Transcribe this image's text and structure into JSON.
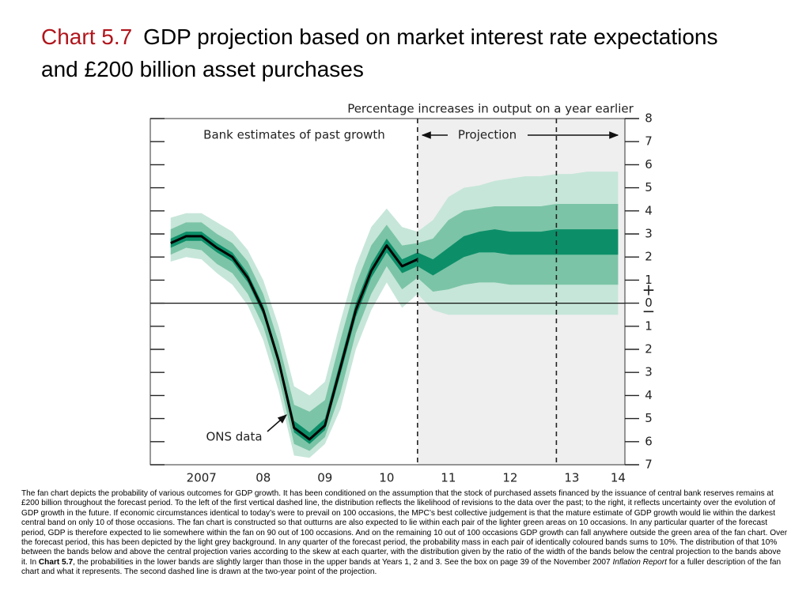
{
  "chart_data": {
    "type": "fan",
    "chart_label": "Chart 5.7",
    "title": "GDP projection based on market interest rate expectations and £200 billion asset purchases",
    "y_axis_label": "Percentage increases in output on a year earlier",
    "annotations": {
      "past": "Bank estimates of past growth",
      "projection": "Projection",
      "line": "ONS data",
      "plus": "+",
      "minus": "−"
    },
    "x": [
      2007.0,
      2007.25,
      2007.5,
      2007.75,
      2008.0,
      2008.25,
      2008.5,
      2008.75,
      2009.0,
      2009.25,
      2009.5,
      2009.75,
      2010.0,
      2010.25,
      2010.5,
      2010.75,
      2011.0,
      2011.25,
      2011.5,
      2011.75,
      2012.0,
      2012.25,
      2012.5,
      2012.75,
      2013.0,
      2013.25,
      2013.5,
      2013.75,
      2014.0,
      2014.25
    ],
    "bands": [
      {
        "color": "#c6e6d9",
        "upper": [
          3.7,
          3.9,
          3.9,
          3.5,
          3.1,
          2.3,
          1.0,
          -1.0,
          -3.6,
          -4.0,
          -3.4,
          -0.8,
          1.6,
          3.3,
          4.1,
          3.3,
          3.1,
          3.6,
          4.6,
          5.0,
          5.1,
          5.3,
          5.4,
          5.5,
          5.5,
          5.6,
          5.6,
          5.7,
          5.7,
          5.7
        ],
        "lower": [
          1.8,
          2.0,
          1.9,
          1.3,
          0.8,
          -0.1,
          -1.6,
          -3.8,
          -6.6,
          -6.7,
          -6.1,
          -4.6,
          -2.0,
          -0.3,
          0.9,
          -0.2,
          0.4,
          -0.3,
          -0.5,
          -0.5,
          -0.5,
          -0.5,
          -0.5,
          -0.5,
          -0.5,
          -0.5,
          -0.5,
          -0.5,
          -0.5,
          -0.5
        ]
      },
      {
        "color": "#7cc4a7",
        "upper": [
          3.2,
          3.5,
          3.5,
          3.0,
          2.6,
          1.8,
          0.4,
          -1.7,
          -4.4,
          -4.7,
          -4.2,
          -1.6,
          0.8,
          2.5,
          3.4,
          2.5,
          2.6,
          2.8,
          3.6,
          4.0,
          4.1,
          4.2,
          4.2,
          4.2,
          4.2,
          4.3,
          4.3,
          4.3,
          4.3,
          4.3
        ],
        "lower": [
          2.1,
          2.4,
          2.3,
          1.7,
          1.3,
          0.4,
          -1.0,
          -3.2,
          -6.1,
          -6.4,
          -5.8,
          -3.9,
          -1.3,
          0.4,
          1.6,
          0.6,
          1.1,
          0.5,
          0.6,
          0.8,
          0.9,
          0.9,
          0.8,
          0.8,
          0.8,
          0.8,
          0.8,
          0.8,
          0.8,
          0.8
        ]
      },
      {
        "color": "#0c8f69",
        "upper": [
          2.8,
          3.1,
          3.1,
          2.6,
          2.2,
          1.3,
          -0.1,
          -2.3,
          -5.1,
          -5.6,
          -5.0,
          -2.5,
          0.0,
          1.7,
          2.8,
          1.9,
          2.2,
          1.9,
          2.4,
          2.9,
          3.1,
          3.2,
          3.1,
          3.1,
          3.1,
          3.2,
          3.2,
          3.2,
          3.2,
          3.2
        ],
        "lower": [
          2.4,
          2.7,
          2.7,
          2.2,
          1.8,
          0.9,
          -0.5,
          -2.7,
          -5.6,
          -6.1,
          -5.5,
          -3.1,
          -0.6,
          1.1,
          2.2,
          1.3,
          1.6,
          1.2,
          1.6,
          2.0,
          2.2,
          2.2,
          2.1,
          2.1,
          2.1,
          2.1,
          2.1,
          2.1,
          2.1,
          2.1
        ]
      }
    ],
    "series": [
      {
        "name": "ONS data",
        "color": "#000000",
        "values": [
          2.6,
          2.9,
          2.9,
          2.4,
          2.0,
          1.1,
          -0.3,
          -2.5,
          -5.4,
          -5.9,
          -5.3,
          -2.8,
          -0.3,
          1.4,
          2.5,
          1.6,
          1.9,
          null,
          null,
          null,
          null,
          null,
          null,
          null,
          null,
          null,
          null,
          null,
          null,
          null
        ]
      }
    ],
    "shade_from": 2011.0,
    "shade_color": "#efefef",
    "dashed_lines": [
      2011.0,
      2013.25
    ],
    "zero_line": true,
    "xlim": [
      2006.67,
      2014.36
    ],
    "ylim": [
      -7,
      8
    ],
    "xticks": [
      {
        "value": 2007.5,
        "label": "2007"
      },
      {
        "value": 2008.5,
        "label": "08"
      },
      {
        "value": 2009.5,
        "label": "09"
      },
      {
        "value": 2010.5,
        "label": "10"
      },
      {
        "value": 2011.5,
        "label": "11"
      },
      {
        "value": 2012.5,
        "label": "12"
      },
      {
        "value": 2013.5,
        "label": "13"
      },
      {
        "value": 2014.25,
        "label": "14"
      }
    ],
    "yticks": [
      8,
      7,
      6,
      5,
      4,
      3,
      2,
      1,
      0,
      {
        "value": -1,
        "label": "1"
      },
      {
        "value": -2,
        "label": "2"
      },
      {
        "value": -3,
        "label": "3"
      },
      {
        "value": -4,
        "label": "4"
      },
      {
        "value": -5,
        "label": "5"
      },
      {
        "value": -6,
        "label": "6"
      },
      {
        "value": -7,
        "label": "7"
      }
    ]
  },
  "caption": [
    "The fan chart depicts the probability of various outcomes for GDP growth.  It has been conditioned on the assumption that the stock of purchased assets financed by the issuance of central bank reserves remains at £200 billion throughout the forecast period.  To the left of the first vertical dashed line, the distribution reflects the likelihood of revisions to the data over the past;  to the right, it reflects uncertainty over the evolution of GDP growth in the future.  If economic circumstances identical to today’s were to prevail on 100 occasions, the MPC’s best collective judgement is that the mature estimate of GDP growth would lie within the darkest central band on only 10 of those occasions.  The fan chart is constructed so that outturns are also expected to lie within each pair of the lighter green areas on 10 occasions.  In any particular quarter of the forecast period, GDP is therefore expected to lie somewhere within the fan on 90 out of 100 occasions.  And on the remaining 10 out of 100 occasions GDP growth can fall anywhere outside the green area of the fan chart.  Over the forecast period, this has been depicted by the light grey background.  In any quarter of the forecast period, the probability mass in each pair of identically coloured bands sums to 10%.  The distribution of that 10% between the bands below and above the central projection varies according to the skew at each quarter, with the distribution given by the ratio of the width of the bands below the central projection to the bands above it.  In ",
    "Chart 5.7",
    ", the probabilities in the lower bands are slightly larger than those in the upper bands at Years 1, 2 and 3.  See the box on page 39 of the November 2007 ",
    "Inflation Report",
    " for a fuller description of the fan chart and what it represents.  The second dashed line is drawn at the two-year point of the projection."
  ]
}
